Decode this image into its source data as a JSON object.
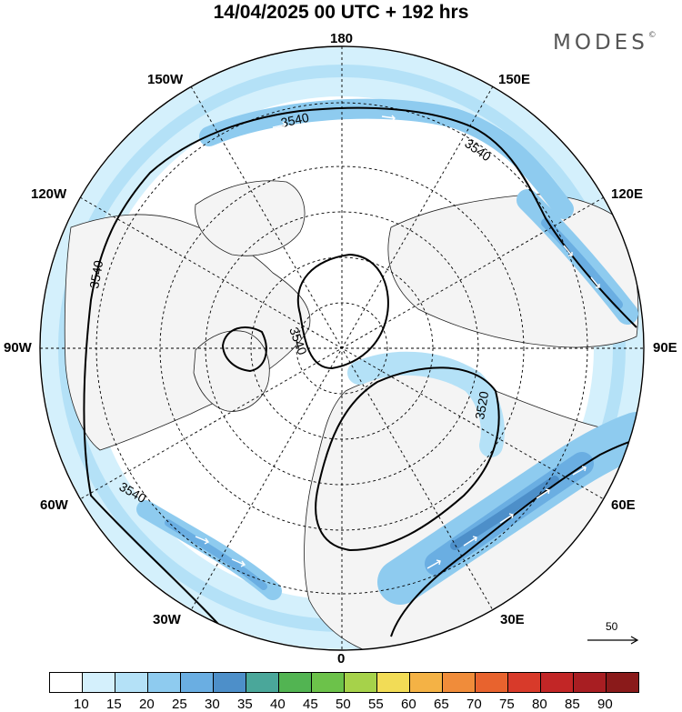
{
  "header": {
    "title": "14/04/2025  00 UTC  + 192 hrs",
    "brand": "MODES",
    "brand_mark": "©"
  },
  "map": {
    "projection": "north-polar-stereographic",
    "colors": {
      "land": "#f4f4f4",
      "ocean": "#ffffff",
      "coast": "#222222"
    },
    "longitude_labels": {
      "top": "180",
      "bottom": "0",
      "left": "90W",
      "right": "90E",
      "upper_left_1": "150W",
      "upper_left_2": "120W",
      "lower_left_1": "60W",
      "lower_left_2": "30W",
      "upper_right_1": "150E",
      "upper_right_2": "120E",
      "lower_right_1": "60E",
      "lower_right_2": "30E"
    },
    "contour_labels": [
      "3540",
      "3540",
      "3540",
      "3540",
      "3540",
      "3520"
    ],
    "wind_shading_colors": [
      "#ffffff",
      "#d4f0fc",
      "#b4e1f7",
      "#8ecbef",
      "#6aaee2",
      "#4d8fc9"
    ],
    "vector_reference": "50"
  },
  "colorbar": {
    "ticks": [
      "10",
      "15",
      "20",
      "25",
      "30",
      "35",
      "40",
      "45",
      "50",
      "55",
      "60",
      "65",
      "70",
      "75",
      "80",
      "85",
      "90"
    ],
    "colors": [
      "#ffffff",
      "#d4f0fc",
      "#b4e1f7",
      "#8ecbef",
      "#6aaee2",
      "#4d8fc9",
      "#4aa79a",
      "#52b452",
      "#6cc24a",
      "#a6d24a",
      "#f2dc56",
      "#f4b245",
      "#f08c3a",
      "#e8632e",
      "#d83a2a",
      "#c22626",
      "#a81e22",
      "#8a1a1a"
    ]
  }
}
